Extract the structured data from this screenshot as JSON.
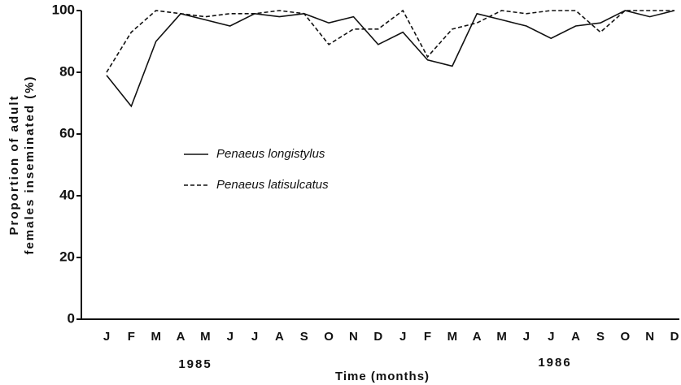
{
  "chart_data": {
    "type": "line",
    "ylabel": [
      "Proportion of adult",
      "females inseminated (%)"
    ],
    "xlabel": "Time (months)",
    "year_labels": [
      "1985",
      "1986"
    ],
    "categories": [
      "J",
      "F",
      "M",
      "A",
      "M",
      "J",
      "J",
      "A",
      "S",
      "O",
      "N",
      "D",
      "J",
      "F",
      "M",
      "A",
      "M",
      "J",
      "J",
      "A",
      "S",
      "O",
      "N",
      "D"
    ],
    "series": [
      {
        "name": "Penaeus longistylus",
        "color": "#111111",
        "dash": "solid",
        "values": [
          79,
          69,
          90,
          99,
          97,
          95,
          99,
          98,
          99,
          96,
          98,
          89,
          93,
          84,
          82,
          99,
          97,
          95,
          91,
          95,
          96,
          100,
          98,
          100
        ]
      },
      {
        "name": "Penaeus latisulcatus",
        "color": "#111111",
        "dash": "dashed",
        "values": [
          80,
          93,
          100,
          99,
          98,
          99,
          99,
          100,
          99,
          89,
          94,
          94,
          100,
          85,
          94,
          96,
          100,
          99,
          100,
          100,
          93,
          100,
          100,
          100
        ]
      }
    ],
    "ylim": [
      0,
      100
    ],
    "yticks": [
      0,
      20,
      40,
      60,
      80,
      100
    ],
    "grid": false
  }
}
